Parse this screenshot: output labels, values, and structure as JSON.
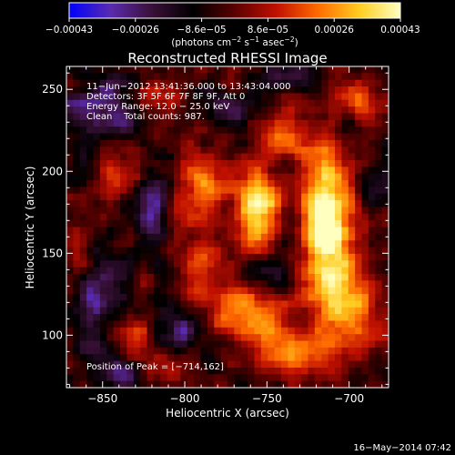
{
  "chart_data": {
    "type": "heatmap",
    "title": "Reconstructed RHESSI Image",
    "xlabel": "Heliocentric X (arcsec)",
    "ylabel": "Heliocentric Y (arcsec)",
    "xlim": [
      -872,
      -676
    ],
    "ylim": [
      68,
      264
    ],
    "x_ticks": [
      -850,
      -800,
      -750,
      -700
    ],
    "x_tick_labels": [
      "−850",
      "−800",
      "−750",
      "−700"
    ],
    "y_ticks": [
      100,
      150,
      200,
      250
    ],
    "y_tick_labels": [
      "100",
      "150",
      "200",
      "250"
    ],
    "colorbar": {
      "range": [
        -0.00043,
        0.00043
      ],
      "tick_labels": [
        "−0.00043",
        "−0.00026",
        "−8.6e−05",
        "8.6e−05",
        "0.00026",
        "0.00043"
      ],
      "unit_text": "(photons cm",
      "unit_exp1": "−2",
      "unit_mid": " s",
      "unit_exp2": "−1",
      "unit_end": " asec",
      "unit_exp3": "−2",
      "unit_close": ")"
    },
    "annotations": [
      "11−Jun−2012 13:41:36.000 to 13:43:04.000",
      "Detectors: 3F 5F 6F 7F 8F 9F, Att 0",
      "Energy Range: 12.0 − 25.0 keV",
      "Clean    Total counts: 987."
    ],
    "peak_label": "Position of Peak = [−714,162]",
    "peak": [
      -714,
      162
    ],
    "grid": false,
    "colormap": [
      "#0000ff",
      "#5a2bb0",
      "#3a1038",
      "#000000",
      "#5a0000",
      "#c01000",
      "#ff6a00",
      "#ffcc20",
      "#ffffc0"
    ],
    "sources": [
      {
        "x": -714,
        "y": 172,
        "sx": 11,
        "sy": 30,
        "a": 1.0
      },
      {
        "x": -757,
        "y": 178,
        "sx": 9,
        "sy": 20,
        "a": 0.85
      },
      {
        "x": -738,
        "y": 222,
        "sx": 10,
        "sy": 9,
        "a": 0.45
      },
      {
        "x": -792,
        "y": 190,
        "sx": 10,
        "sy": 16,
        "a": 0.55
      },
      {
        "x": -790,
        "y": 140,
        "sx": 9,
        "sy": 15,
        "a": 0.45
      },
      {
        "x": -840,
        "y": 196,
        "sx": 8,
        "sy": 9,
        "a": 0.35
      },
      {
        "x": -832,
        "y": 100,
        "sx": 9,
        "sy": 10,
        "a": 0.45
      },
      {
        "x": -760,
        "y": 112,
        "sx": 16,
        "sy": 12,
        "a": 0.6
      },
      {
        "x": -704,
        "y": 118,
        "sx": 14,
        "sy": 22,
        "a": 0.55
      },
      {
        "x": -735,
        "y": 88,
        "sx": 18,
        "sy": 10,
        "a": 0.5
      },
      {
        "x": -866,
        "y": 145,
        "sx": 6,
        "sy": 12,
        "a": 0.45
      },
      {
        "x": -818,
        "y": 245,
        "sx": 9,
        "sy": 7,
        "a": 0.35
      },
      {
        "x": -695,
        "y": 245,
        "sx": 10,
        "sy": 10,
        "a": 0.4
      },
      {
        "x": -812,
        "y": 80,
        "sx": 10,
        "sy": 8,
        "a": 0.3
      }
    ],
    "sinks": [
      {
        "x": -852,
        "y": 240,
        "sx": 14,
        "sy": 12,
        "a": 0.55
      },
      {
        "x": -855,
        "y": 125,
        "sx": 12,
        "sy": 18,
        "a": 0.55
      },
      {
        "x": -820,
        "y": 175,
        "sx": 8,
        "sy": 15,
        "a": 0.45
      },
      {
        "x": -800,
        "y": 105,
        "sx": 10,
        "sy": 8,
        "a": 0.5
      },
      {
        "x": -745,
        "y": 140,
        "sx": 8,
        "sy": 12,
        "a": 0.4
      },
      {
        "x": -775,
        "y": 236,
        "sx": 10,
        "sy": 8,
        "a": 0.45
      },
      {
        "x": -840,
        "y": 80,
        "sx": 12,
        "sy": 8,
        "a": 0.4
      },
      {
        "x": -742,
        "y": 258,
        "sx": 12,
        "sy": 6,
        "a": 0.35
      }
    ]
  },
  "footer": {
    "timestamp": "16−May−2014 07:42"
  }
}
